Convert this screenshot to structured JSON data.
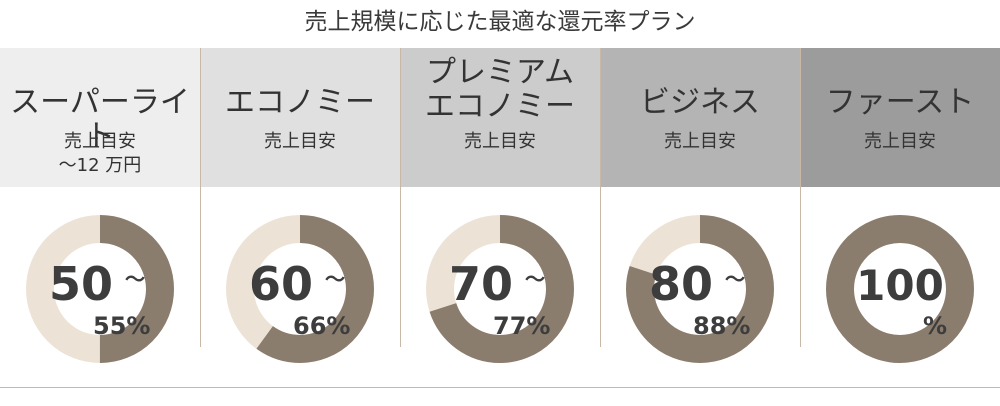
{
  "title": "売上規模に応じた最適な還元率プラン",
  "colors": {
    "ring_dark": "#8b7d6e",
    "ring_light": "#ece3d6",
    "border": "#c9b8a8"
  },
  "plans": [
    {
      "name": "スーパーライト",
      "sub": "売上目安\n〜12 万円",
      "header_bg": "#eeeeee",
      "rate_from": "50",
      "rate_to": "55%",
      "percent": 50
    },
    {
      "name": "エコノミー",
      "sub": "売上目安",
      "header_bg": "#e0e0e0",
      "rate_from": "60",
      "rate_to": "66%",
      "percent": 60
    },
    {
      "name": "プレミアム\nエコノミー",
      "sub": "売上目安",
      "header_bg": "#cccccc",
      "rate_from": "70",
      "rate_to": "77%",
      "percent": 70
    },
    {
      "name": "ビジネス",
      "sub": "売上目安",
      "header_bg": "#b4b4b4",
      "rate_from": "80",
      "rate_to": "88%",
      "percent": 80
    },
    {
      "name": "ファースト",
      "sub": "売上目安",
      "header_bg": "#9c9c9c",
      "rate_from": "100",
      "rate_to": "%",
      "percent": 100
    }
  ]
}
